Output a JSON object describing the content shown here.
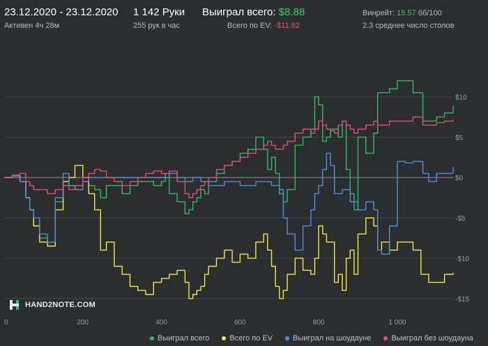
{
  "header": {
    "date_range": "23.12.2020 - 23.12.2020",
    "active_time": "Активен 4ч 28м",
    "hands": "1 142 Руки",
    "hands_per_hour": "255 рук в час",
    "won_total_label": "Выиграл всего:",
    "won_total_value": "$8.88",
    "ev_total_label": "Всего по EV:",
    "ev_total_value": "-$11.82",
    "winrate_label": "Винрейт:",
    "winrate_value": "15.57",
    "winrate_unit": "бб/100",
    "avg_tables": "2.3 среднее число столов"
  },
  "logo": {
    "text": "HAND2NOTE.COM"
  },
  "colors": {
    "green": "#2fbf61",
    "yellow": "#f2ee3b",
    "blue": "#4d8fe0",
    "pink": "#e0507a",
    "grid": "#4a4d50",
    "zero": "#8f9396",
    "text": "#9a9ea2"
  },
  "chart_data": {
    "type": "line",
    "title": "",
    "xlabel": "",
    "ylabel": "",
    "xlim": [
      0,
      1142
    ],
    "ylim": [
      -17,
      17
    ],
    "x_ticks": [
      0,
      200,
      400,
      600,
      800,
      1000
    ],
    "x_tick_labels": [
      "0",
      "200",
      "400",
      "600",
      "800",
      "1 000"
    ],
    "y_ticks": [
      10,
      5,
      0,
      -5,
      -10,
      -15
    ],
    "y_tick_labels": [
      "$10",
      "$5",
      "$0",
      "-$5",
      "-$10",
      "-$15"
    ],
    "grid": "horizontal",
    "legend_position": "bottom",
    "series": [
      {
        "name": "Выиграл всего",
        "color": "#2fbf61",
        "points": [
          [
            0,
            0
          ],
          [
            20,
            0.2
          ],
          [
            40,
            -0.5
          ],
          [
            55,
            -2.5
          ],
          [
            65,
            -4
          ],
          [
            75,
            -6
          ],
          [
            90,
            -7.5
          ],
          [
            110,
            -8
          ],
          [
            130,
            -3
          ],
          [
            150,
            -0.5
          ],
          [
            165,
            -1
          ],
          [
            180,
            -1.5
          ],
          [
            200,
            -0.5
          ],
          [
            215,
            -1
          ],
          [
            230,
            -1.5
          ],
          [
            245,
            -2.5
          ],
          [
            260,
            -1
          ],
          [
            280,
            -1
          ],
          [
            300,
            -2
          ],
          [
            320,
            -1
          ],
          [
            340,
            -0.5
          ],
          [
            360,
            -0.5
          ],
          [
            380,
            -1
          ],
          [
            400,
            -0.5
          ],
          [
            410,
            0.5
          ],
          [
            420,
            -2
          ],
          [
            440,
            -3
          ],
          [
            460,
            -4.5
          ],
          [
            470,
            -4
          ],
          [
            480,
            -3
          ],
          [
            490,
            -2.5
          ],
          [
            500,
            -1.5
          ],
          [
            510,
            -2
          ],
          [
            520,
            -0.5
          ],
          [
            540,
            0.5
          ],
          [
            560,
            1.5
          ],
          [
            580,
            2
          ],
          [
            600,
            3
          ],
          [
            620,
            3.5
          ],
          [
            640,
            5
          ],
          [
            660,
            3.5
          ],
          [
            670,
            1
          ],
          [
            680,
            2.5
          ],
          [
            690,
            0.5
          ],
          [
            700,
            -1.5
          ],
          [
            710,
            -3
          ],
          [
            720,
            -1.5
          ],
          [
            740,
            4
          ],
          [
            760,
            5
          ],
          [
            780,
            6
          ],
          [
            790,
            10
          ],
          [
            800,
            9
          ],
          [
            810,
            4.5
          ],
          [
            820,
            5
          ],
          [
            830,
            6
          ],
          [
            840,
            6
          ],
          [
            850,
            5
          ],
          [
            860,
            7
          ],
          [
            870,
            1
          ],
          [
            880,
            -2
          ],
          [
            890,
            -4
          ],
          [
            900,
            5
          ],
          [
            920,
            3
          ],
          [
            940,
            5.5
          ],
          [
            950,
            10.5
          ],
          [
            960,
            10.5
          ],
          [
            980,
            11
          ],
          [
            1000,
            12
          ],
          [
            1020,
            12
          ],
          [
            1040,
            10.5
          ],
          [
            1060,
            10.5
          ],
          [
            1065,
            7
          ],
          [
            1080,
            7
          ],
          [
            1100,
            7.5
          ],
          [
            1120,
            8
          ],
          [
            1142,
            8.9
          ]
        ]
      },
      {
        "name": "Всего по EV",
        "color": "#f2ee3b",
        "points": [
          [
            0,
            0
          ],
          [
            20,
            0.2
          ],
          [
            40,
            -0.5
          ],
          [
            55,
            -2.5
          ],
          [
            65,
            -4
          ],
          [
            75,
            -6
          ],
          [
            90,
            -8
          ],
          [
            110,
            -8.5
          ],
          [
            130,
            -4
          ],
          [
            150,
            -0.5
          ],
          [
            165,
            0
          ],
          [
            180,
            1.5
          ],
          [
            200,
            0
          ],
          [
            215,
            -2
          ],
          [
            230,
            -4
          ],
          [
            245,
            -9
          ],
          [
            260,
            -8
          ],
          [
            280,
            -11
          ],
          [
            300,
            -12
          ],
          [
            320,
            -13.5
          ],
          [
            340,
            -14
          ],
          [
            360,
            -14.5
          ],
          [
            380,
            -13
          ],
          [
            400,
            -12.5
          ],
          [
            420,
            -12
          ],
          [
            440,
            -11.5
          ],
          [
            460,
            -13
          ],
          [
            470,
            -15
          ],
          [
            480,
            -14.5
          ],
          [
            490,
            -14
          ],
          [
            500,
            -13.5
          ],
          [
            510,
            -12
          ],
          [
            520,
            -11
          ],
          [
            540,
            -10
          ],
          [
            560,
            -9
          ],
          [
            580,
            -10.5
          ],
          [
            600,
            -9.5
          ],
          [
            620,
            -10
          ],
          [
            640,
            -8
          ],
          [
            660,
            -7
          ],
          [
            670,
            -9
          ],
          [
            680,
            -11
          ],
          [
            690,
            -13.5
          ],
          [
            700,
            -15
          ],
          [
            710,
            -14
          ],
          [
            720,
            -12
          ],
          [
            740,
            -10
          ],
          [
            760,
            -11.5
          ],
          [
            780,
            -12
          ],
          [
            790,
            -10
          ],
          [
            800,
            -6
          ],
          [
            810,
            -7
          ],
          [
            820,
            -8
          ],
          [
            830,
            -8
          ],
          [
            840,
            -13
          ],
          [
            850,
            -12
          ],
          [
            860,
            -14
          ],
          [
            870,
            -10
          ],
          [
            880,
            -9
          ],
          [
            890,
            -12
          ],
          [
            900,
            -7
          ],
          [
            920,
            -5
          ],
          [
            940,
            -6
          ],
          [
            950,
            -9
          ],
          [
            960,
            -8
          ],
          [
            980,
            -9
          ],
          [
            1000,
            -8
          ],
          [
            1020,
            -8
          ],
          [
            1040,
            -9
          ],
          [
            1060,
            -12
          ],
          [
            1080,
            -13
          ],
          [
            1100,
            -13
          ],
          [
            1120,
            -12
          ],
          [
            1142,
            -11.8
          ]
        ]
      },
      {
        "name": "Выиграл на шоудауне",
        "color": "#4d8fe0",
        "points": [
          [
            0,
            0
          ],
          [
            20,
            0.2
          ],
          [
            40,
            -0.5
          ],
          [
            55,
            -2.5
          ],
          [
            65,
            -4
          ],
          [
            75,
            -5
          ],
          [
            90,
            -7
          ],
          [
            110,
            -8
          ],
          [
            130,
            -2.5
          ],
          [
            150,
            0.5
          ],
          [
            165,
            -1
          ],
          [
            180,
            -1.5
          ],
          [
            200,
            -0.5
          ],
          [
            215,
            0
          ],
          [
            230,
            0
          ],
          [
            245,
            0
          ],
          [
            260,
            0
          ],
          [
            280,
            0
          ],
          [
            300,
            0
          ],
          [
            320,
            0
          ],
          [
            340,
            0
          ],
          [
            360,
            0
          ],
          [
            380,
            0
          ],
          [
            400,
            0
          ],
          [
            420,
            0.5
          ],
          [
            440,
            0
          ],
          [
            460,
            -0.5
          ],
          [
            480,
            0
          ],
          [
            500,
            -0.5
          ],
          [
            520,
            -1
          ],
          [
            540,
            -1
          ],
          [
            560,
            -0.5
          ],
          [
            580,
            -0.5
          ],
          [
            600,
            -1
          ],
          [
            620,
            -1
          ],
          [
            640,
            -0.5
          ],
          [
            660,
            -0.5
          ],
          [
            680,
            -1
          ],
          [
            700,
            -2
          ],
          [
            710,
            -5
          ],
          [
            720,
            -7
          ],
          [
            740,
            -9
          ],
          [
            760,
            -6
          ],
          [
            780,
            -4
          ],
          [
            790,
            -2
          ],
          [
            800,
            -1
          ],
          [
            810,
            1
          ],
          [
            820,
            3
          ],
          [
            830,
            1.5
          ],
          [
            840,
            -2
          ],
          [
            850,
            -2
          ],
          [
            860,
            -1.5
          ],
          [
            880,
            -3
          ],
          [
            900,
            -4
          ],
          [
            920,
            -3
          ],
          [
            940,
            -4
          ],
          [
            950,
            -9
          ],
          [
            960,
            -9.5
          ],
          [
            980,
            -6
          ],
          [
            1000,
            2
          ],
          [
            1020,
            1.8
          ],
          [
            1040,
            2
          ],
          [
            1060,
            2
          ],
          [
            1065,
            0.5
          ],
          [
            1080,
            -0.5
          ],
          [
            1100,
            0.5
          ],
          [
            1120,
            0.5
          ],
          [
            1142,
            1.3
          ]
        ]
      },
      {
        "name": "Выиграл без шоудауна",
        "color": "#e0507a",
        "points": [
          [
            0,
            0
          ],
          [
            20,
            0.3
          ],
          [
            40,
            0.5
          ],
          [
            55,
            -0.5
          ],
          [
            65,
            -1
          ],
          [
            75,
            -1.5
          ],
          [
            90,
            -1.5
          ],
          [
            110,
            -2
          ],
          [
            130,
            -1.5
          ],
          [
            150,
            -1
          ],
          [
            165,
            -1.5
          ],
          [
            180,
            -1
          ],
          [
            200,
            0
          ],
          [
            215,
            0.5
          ],
          [
            230,
            1
          ],
          [
            245,
            0.8
          ],
          [
            260,
            0
          ],
          [
            280,
            -0.5
          ],
          [
            300,
            -1
          ],
          [
            320,
            -0.5
          ],
          [
            340,
            0
          ],
          [
            360,
            0.5
          ],
          [
            380,
            0.8
          ],
          [
            400,
            0.5
          ],
          [
            420,
            0.8
          ],
          [
            440,
            -0.5
          ],
          [
            460,
            -2
          ],
          [
            470,
            -2.5
          ],
          [
            480,
            -2
          ],
          [
            490,
            -1.5
          ],
          [
            500,
            -1
          ],
          [
            510,
            -0.5
          ],
          [
            520,
            0
          ],
          [
            540,
            1
          ],
          [
            560,
            1.5
          ],
          [
            580,
            2
          ],
          [
            600,
            2.5
          ],
          [
            620,
            3
          ],
          [
            640,
            3.5
          ],
          [
            660,
            4
          ],
          [
            670,
            4.5
          ],
          [
            680,
            4
          ],
          [
            690,
            3.5
          ],
          [
            700,
            3.5
          ],
          [
            710,
            4
          ],
          [
            720,
            4.5
          ],
          [
            740,
            5.5
          ],
          [
            760,
            6
          ],
          [
            780,
            5.5
          ],
          [
            790,
            6
          ],
          [
            800,
            7
          ],
          [
            810,
            6.5
          ],
          [
            820,
            6
          ],
          [
            830,
            5.8
          ],
          [
            840,
            5.5
          ],
          [
            850,
            6.5
          ],
          [
            860,
            7
          ],
          [
            870,
            6.5
          ],
          [
            880,
            6
          ],
          [
            890,
            5.5
          ],
          [
            900,
            6
          ],
          [
            920,
            6.5
          ],
          [
            940,
            7
          ],
          [
            950,
            6.5
          ],
          [
            960,
            6.5
          ],
          [
            980,
            7
          ],
          [
            1000,
            7
          ],
          [
            1020,
            7
          ],
          [
            1040,
            7.5
          ],
          [
            1060,
            7.5
          ],
          [
            1065,
            6.5
          ],
          [
            1080,
            6.5
          ],
          [
            1100,
            6.8
          ],
          [
            1120,
            7
          ],
          [
            1142,
            7.2
          ]
        ]
      }
    ]
  }
}
